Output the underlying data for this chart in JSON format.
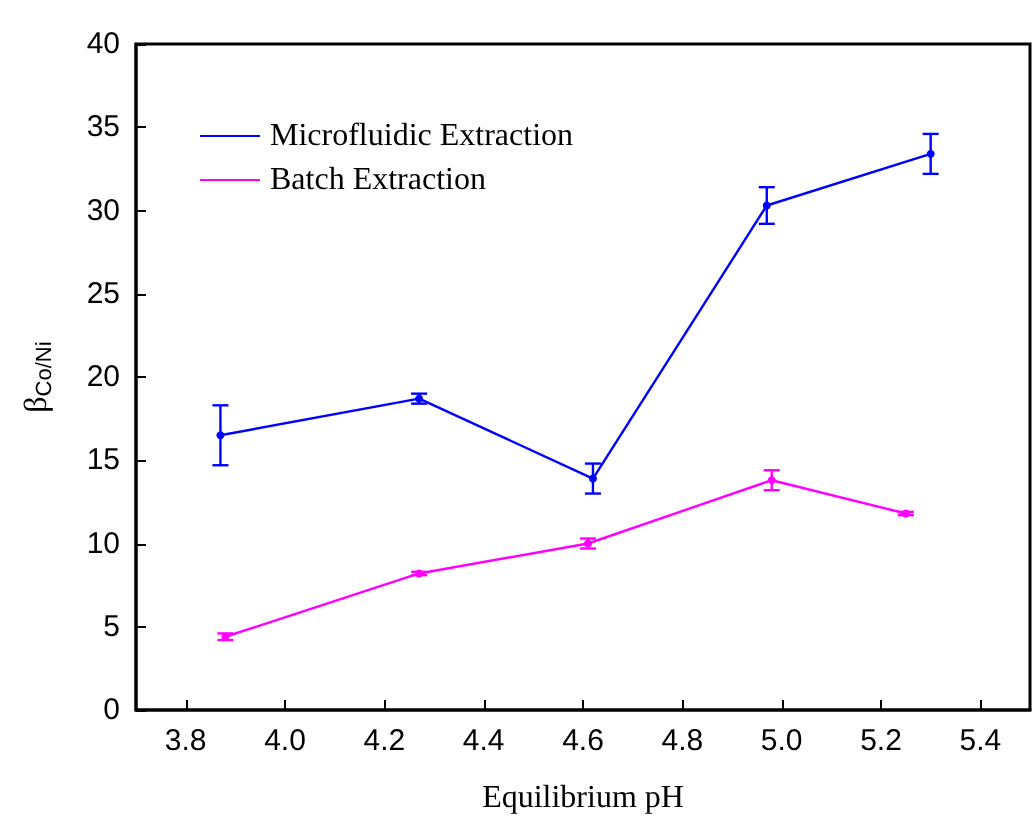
{
  "chart_data": {
    "type": "line",
    "xlabel": "Equilibrium pH",
    "ylabel": "β$_{Co/Ni}$",
    "xlim": [
      3.7,
      5.5
    ],
    "xticks": [
      3.8,
      {
        "value": 4,
        "label": "4.0"
      },
      4.2,
      4.4,
      4.6,
      4.8,
      {
        "value": 5,
        "label": "5.0"
      },
      5.2,
      5.4
    ],
    "ylim": [
      0,
      40
    ],
    "yticks": [
      0,
      5,
      10,
      15,
      20,
      25,
      30,
      35,
      40
    ],
    "series": [
      {
        "name": "Microfluidic Extraction",
        "color": "#0000ff",
        "x": [
          3.87,
          4.27,
          4.62,
          4.97,
          5.3
        ],
        "values": [
          16.5,
          18.7,
          13.9,
          30.3,
          33.4
        ],
        "errors": [
          [
            14.7,
            18.3
          ],
          [
            18.4,
            19.0
          ],
          [
            13.0,
            14.8
          ],
          [
            29.2,
            31.4
          ],
          [
            32.2,
            34.6
          ]
        ]
      },
      {
        "name": "Batch Extraction",
        "color": "#ff00ff",
        "x": [
          3.88,
          4.27,
          4.61,
          4.98,
          5.25
        ],
        "values": [
          4.4,
          8.2,
          10.0,
          13.8,
          11.8
        ],
        "errors": [
          [
            4.2,
            4.6
          ],
          [
            8.1,
            8.3
          ],
          [
            9.7,
            10.3
          ],
          [
            13.2,
            14.4
          ],
          [
            11.7,
            11.9
          ]
        ]
      }
    ],
    "legend": "top left",
    "grid": false,
    "marker": "circle",
    "line_style": "solid"
  }
}
